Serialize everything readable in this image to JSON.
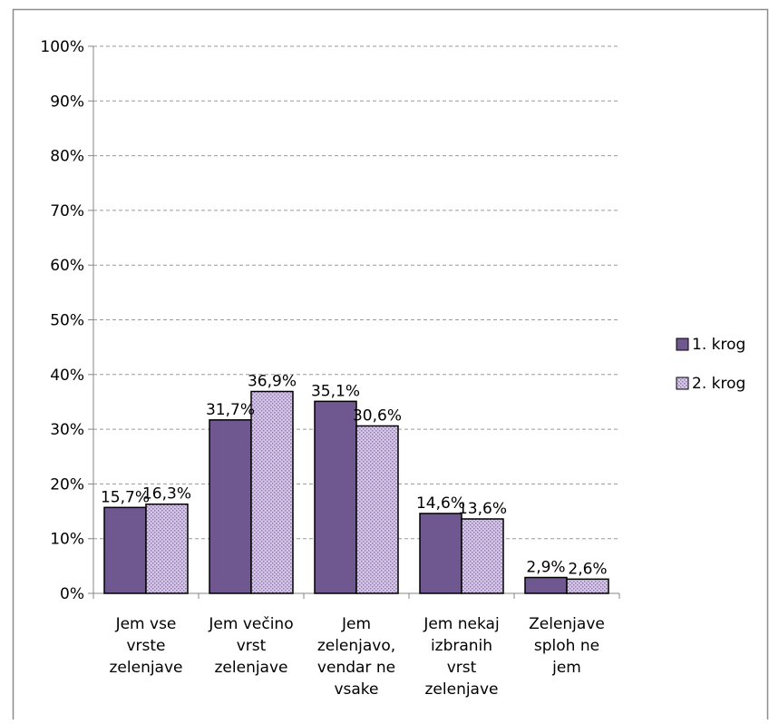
{
  "chart_data": {
    "type": "bar",
    "title": "",
    "xlabel": "",
    "ylabel": "",
    "ylim": [
      0,
      100
    ],
    "y_ticks": [
      "0%",
      "10%",
      "20%",
      "30%",
      "40%",
      "50%",
      "60%",
      "70%",
      "80%",
      "90%",
      "100%"
    ],
    "grid": "horizontal dashed",
    "legend_placement": "right",
    "categories": [
      [
        "Jem vse",
        "vrste",
        "zelenjave"
      ],
      [
        "Jem večino",
        "vrst",
        "zelenjave"
      ],
      [
        "Jem",
        "zelenjavo,",
        "vendar ne",
        "vsake"
      ],
      [
        "Jem nekaj",
        "izbranih",
        "vrst",
        "zelenjave"
      ],
      [
        "Zelenjave",
        "sploh ne",
        "jem"
      ]
    ],
    "series": [
      {
        "name": "1. krog",
        "values": [
          15.7,
          31.7,
          35.1,
          14.6,
          2.9
        ],
        "labels": [
          "15,7%",
          "31,7%",
          "35,1%",
          "14,6%",
          "2,9%"
        ],
        "color": "#6f578f",
        "pattern": "solid"
      },
      {
        "name": "2. krog",
        "values": [
          16.3,
          36.9,
          30.6,
          13.6,
          2.6
        ],
        "labels": [
          "16,3%",
          "36,9%",
          "30,6%",
          "13,6%",
          "2,6%"
        ],
        "color": "#d8c8e8",
        "pattern": "dotted"
      }
    ]
  }
}
